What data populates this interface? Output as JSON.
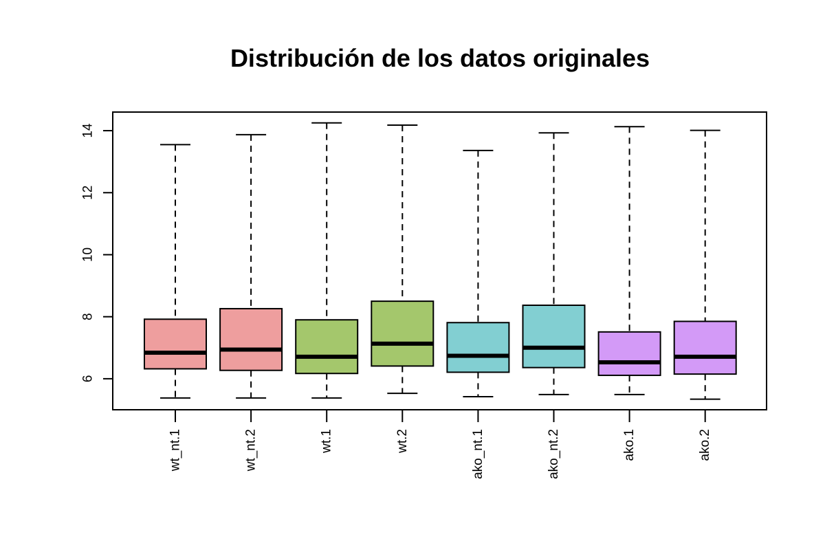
{
  "chart_data": {
    "type": "boxplot",
    "title": "Distribución de los datos originales",
    "xlabel": "",
    "ylabel": "",
    "ylim": [
      5.0,
      14.6
    ],
    "yticks": [
      6,
      8,
      10,
      12,
      14
    ],
    "grid": false,
    "legend": "none",
    "categories": [
      "wt_nt.1",
      "wt_nt.2",
      "wt.1",
      "wt.2",
      "ako_nt.1",
      "ako_nt.2",
      "ako.1",
      "ako.2"
    ],
    "colors": [
      "#EE9E9E",
      "#EE9E9E",
      "#A4C76C",
      "#A4C76C",
      "#82CFD2",
      "#82CFD2",
      "#D39AF7",
      "#D39AF7"
    ],
    "boxes": [
      {
        "min": 5.38,
        "q1": 6.32,
        "median": 6.84,
        "q3": 7.92,
        "max": 13.55
      },
      {
        "min": 5.38,
        "q1": 6.27,
        "median": 6.94,
        "q3": 8.26,
        "max": 13.87
      },
      {
        "min": 5.38,
        "q1": 6.17,
        "median": 6.71,
        "q3": 7.9,
        "max": 14.25
      },
      {
        "min": 5.53,
        "q1": 6.41,
        "median": 7.13,
        "q3": 8.5,
        "max": 14.18
      },
      {
        "min": 5.42,
        "q1": 6.21,
        "median": 6.74,
        "q3": 7.81,
        "max": 13.36
      },
      {
        "min": 5.49,
        "q1": 6.36,
        "median": 7.0,
        "q3": 8.37,
        "max": 13.93
      },
      {
        "min": 5.49,
        "q1": 6.11,
        "median": 6.53,
        "q3": 7.51,
        "max": 14.13
      },
      {
        "min": 5.34,
        "q1": 6.15,
        "median": 6.71,
        "q3": 7.85,
        "max": 14.01
      }
    ]
  }
}
